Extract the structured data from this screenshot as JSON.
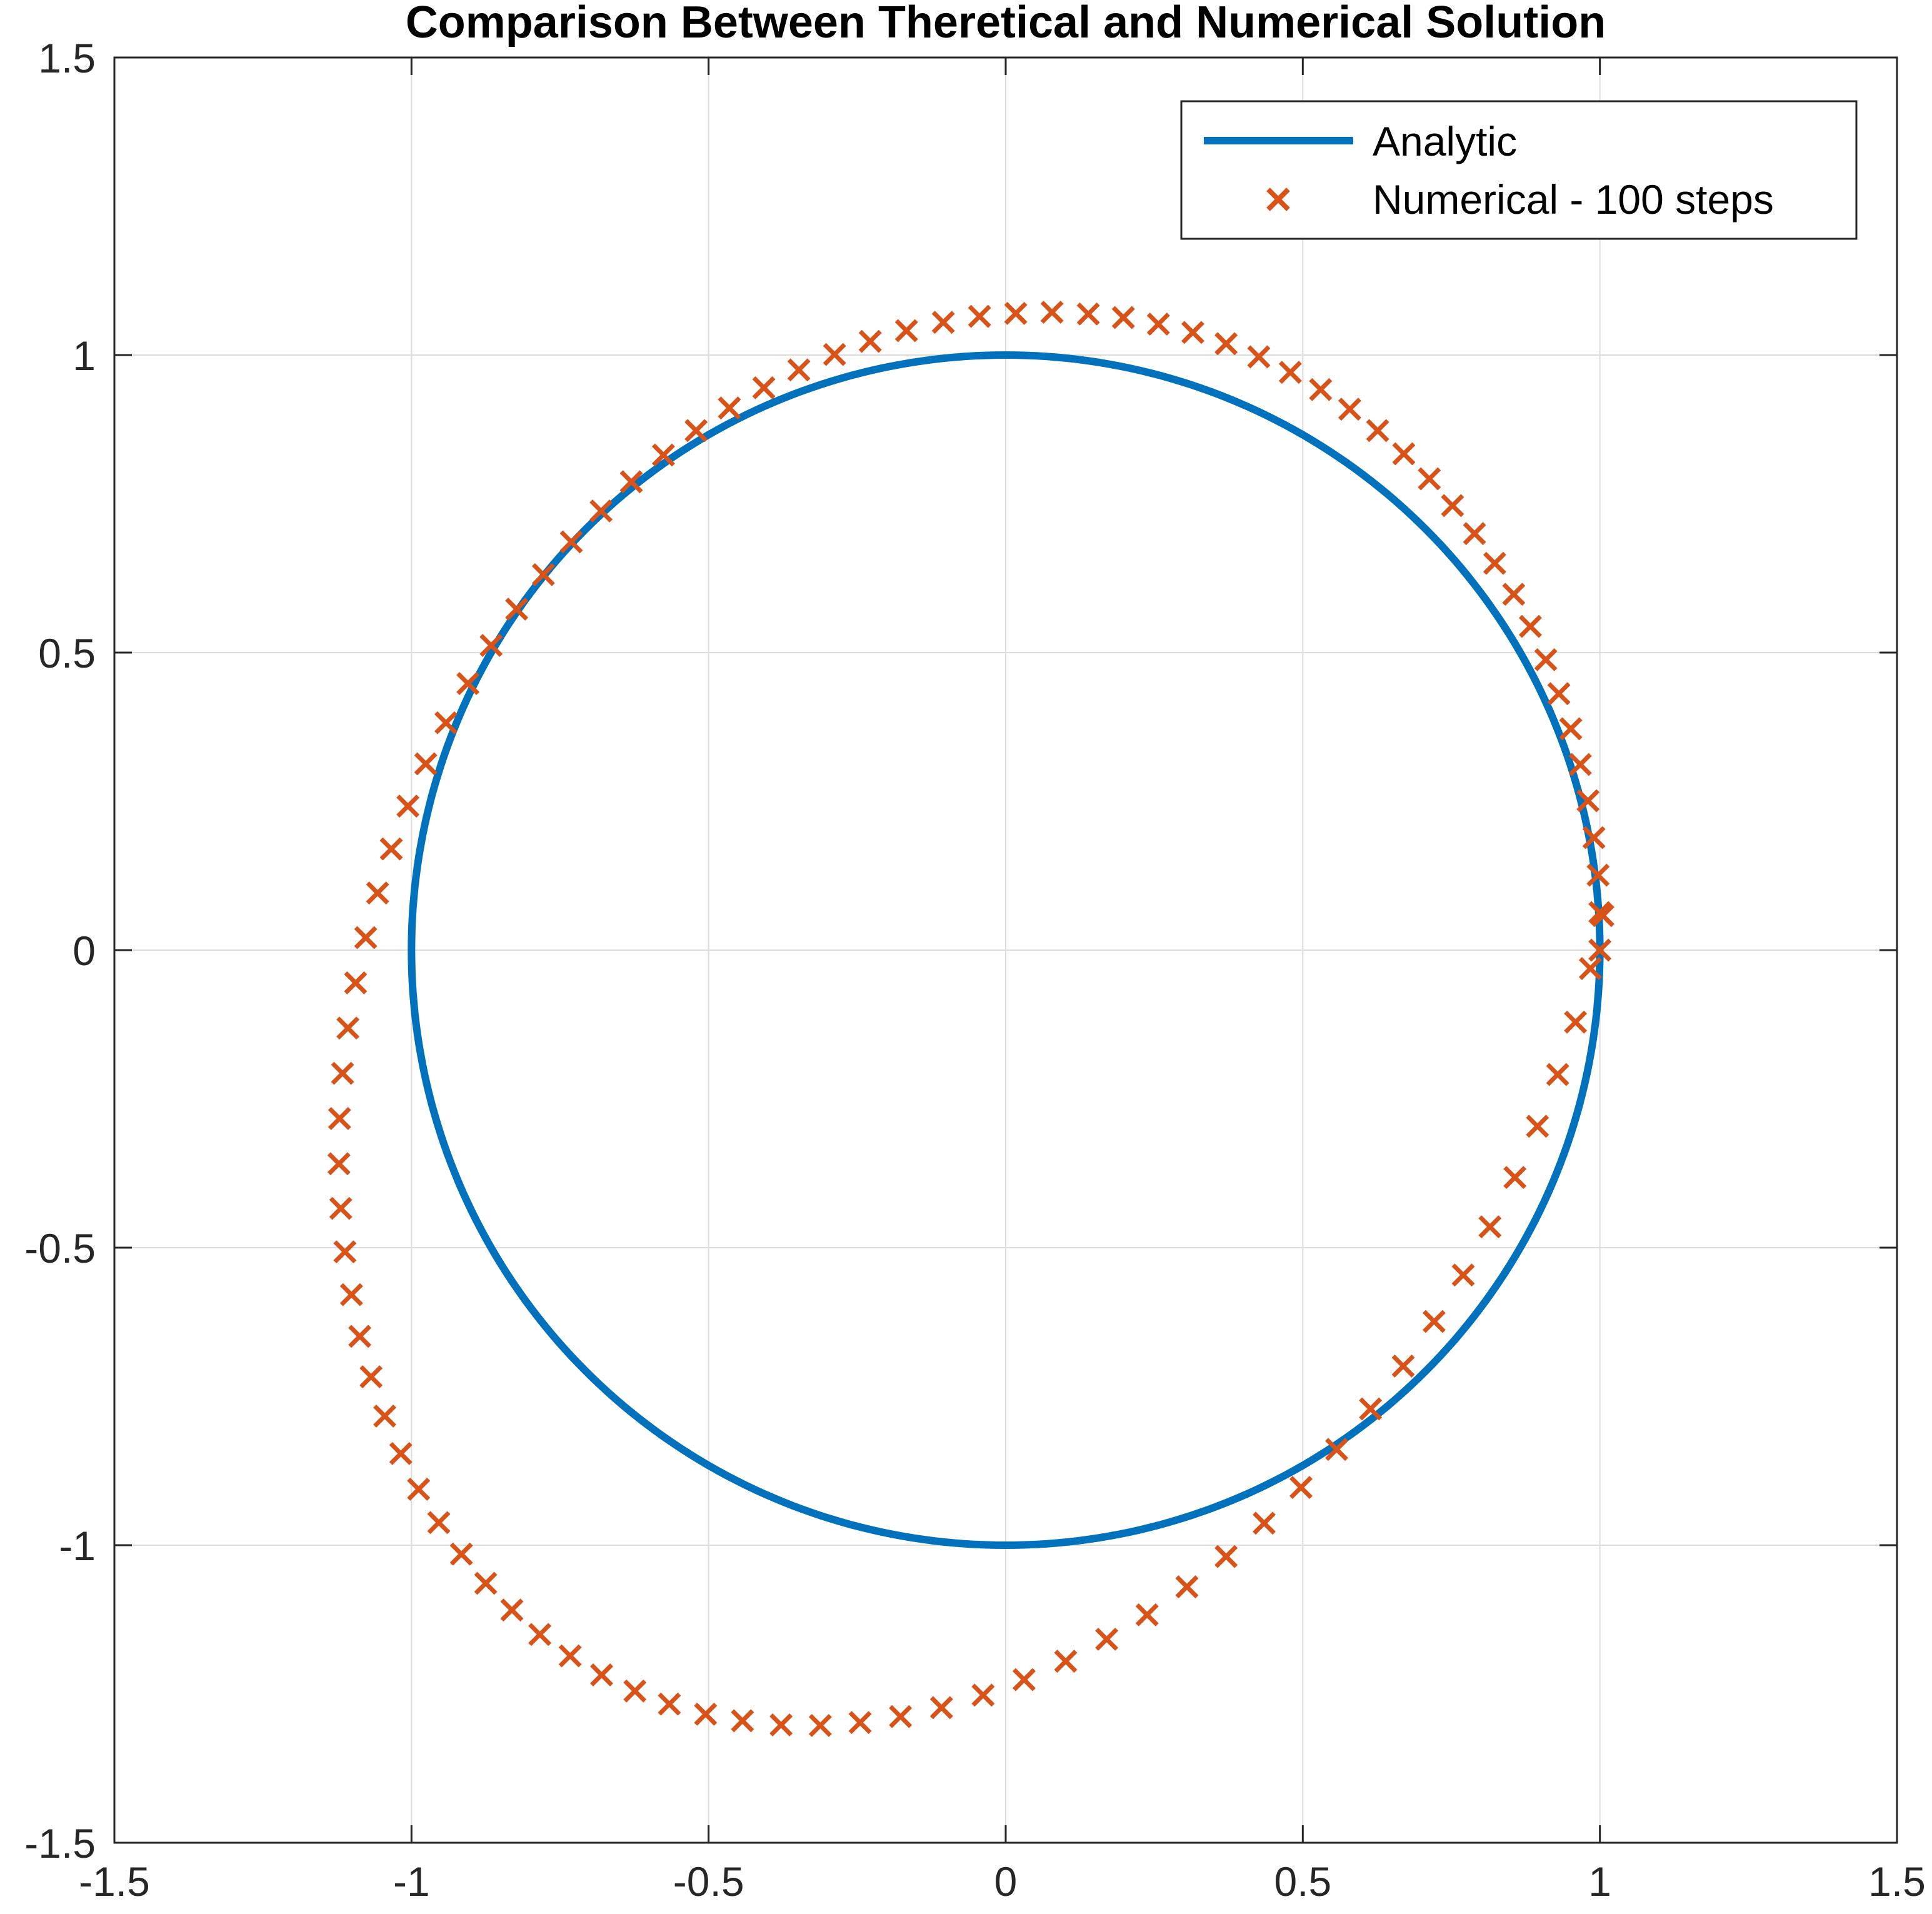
{
  "chart_data": {
    "type": "line",
    "title": "Comparison Between Theretical and Numerical Solution",
    "xlabel": "",
    "ylabel": "",
    "xlim": [
      -1.5,
      1.5
    ],
    "ylim": [
      -1.5,
      1.5
    ],
    "xticks": [
      "-1.5",
      "-1",
      "-0.5",
      "0",
      "0.5",
      "1",
      "1.5"
    ],
    "yticks": [
      "1.5",
      "1",
      "0.5",
      "0",
      "-0.5",
      "-1",
      "-1.5"
    ],
    "grid": true,
    "legend_position": "top-right",
    "series": [
      {
        "name": "Analytic",
        "style": "line",
        "color": "#0072BD",
        "curve": "unit circle",
        "values": {
          "x": [
            1,
            0.951,
            0.809,
            0.588,
            0.309,
            0,
            -0.309,
            -0.588,
            -0.809,
            -0.951,
            -1,
            -0.951,
            -0.809,
            -0.588,
            -0.309,
            0,
            0.309,
            0.588,
            0.809,
            0.951,
            1
          ],
          "y": [
            0,
            0.309,
            0.588,
            0.809,
            0.951,
            1,
            0.951,
            0.809,
            0.588,
            0.309,
            0,
            -0.309,
            -0.588,
            -0.809,
            -0.951,
            -1,
            -0.951,
            -0.809,
            -0.588,
            -0.309,
            0
          ]
        }
      },
      {
        "name": "Numerical - 100 steps",
        "style": "x-marker",
        "color": "#D95319",
        "steps": 100,
        "start": [
          1,
          0
        ],
        "growth_per_step": 0.00197,
        "x": [
          1.0,
          1.0,
          0.997,
          0.99,
          0.98,
          0.967,
          0.951,
          0.931,
          0.909,
          0.883,
          0.855,
          0.823,
          0.789,
          0.752,
          0.713,
          0.67,
          0.626,
          0.579,
          0.53,
          0.479,
          0.426,
          0.371,
          0.315,
          0.257,
          0.198,
          0.139,
          0.078,
          0.017,
          -0.044,
          -0.105,
          -0.167,
          -0.228,
          -0.288,
          -0.348,
          -0.407,
          -0.465,
          -0.521,
          -0.576,
          -0.63,
          -0.681,
          -0.731,
          -0.778,
          -0.823,
          -0.866,
          -0.905,
          -0.942,
          -0.976,
          -1.006,
          -1.034,
          -1.057,
          -1.077,
          -1.094,
          -1.107,
          -1.116,
          -1.121,
          -1.122,
          -1.119,
          -1.112,
          -1.101,
          -1.087,
          -1.068,
          -1.045,
          -1.018,
          -0.988,
          -0.954,
          -0.916,
          -0.875,
          -0.831,
          -0.784,
          -0.733,
          -0.68,
          -0.624,
          -0.566,
          -0.505,
          -0.443,
          -0.378,
          -0.312,
          -0.245,
          -0.177,
          -0.108,
          -0.038,
          0.031,
          0.101,
          0.17,
          0.238,
          0.305,
          0.371,
          0.435,
          0.497,
          0.557,
          0.614,
          0.669,
          0.721,
          0.77,
          0.815,
          0.857,
          0.895,
          0.929,
          0.959,
          0.984,
          1.005
        ],
        "y": [
          0.0,
          0.063,
          0.126,
          0.189,
          0.251,
          0.312,
          0.372,
          0.431,
          0.488,
          0.544,
          0.598,
          0.65,
          0.7,
          0.747,
          0.792,
          0.834,
          0.873,
          0.909,
          0.942,
          0.971,
          0.997,
          1.019,
          1.038,
          1.052,
          1.063,
          1.069,
          1.072,
          1.07,
          1.065,
          1.055,
          1.041,
          1.023,
          1.001,
          0.975,
          0.945,
          0.911,
          0.873,
          0.832,
          0.787,
          0.738,
          0.686,
          0.631,
          0.573,
          0.512,
          0.448,
          0.382,
          0.313,
          0.242,
          0.17,
          0.096,
          0.021,
          -0.055,
          -0.131,
          -0.207,
          -0.283,
          -0.359,
          -0.434,
          -0.507,
          -0.579,
          -0.649,
          -0.717,
          -0.783,
          -0.846,
          -0.906,
          -0.962,
          -1.015,
          -1.064,
          -1.109,
          -1.15,
          -1.186,
          -1.218,
          -1.245,
          -1.267,
          -1.284,
          -1.295,
          -1.302,
          -1.303,
          -1.298,
          -1.288,
          -1.273,
          -1.252,
          -1.226,
          -1.195,
          -1.158,
          -1.117,
          -1.07,
          -1.019,
          -0.963,
          -0.903,
          -0.839,
          -0.771,
          -0.699,
          -0.624,
          -0.546,
          -0.465,
          -0.382,
          -0.296,
          -0.209,
          -0.121,
          -0.031,
          0.058
        ]
      }
    ]
  }
}
